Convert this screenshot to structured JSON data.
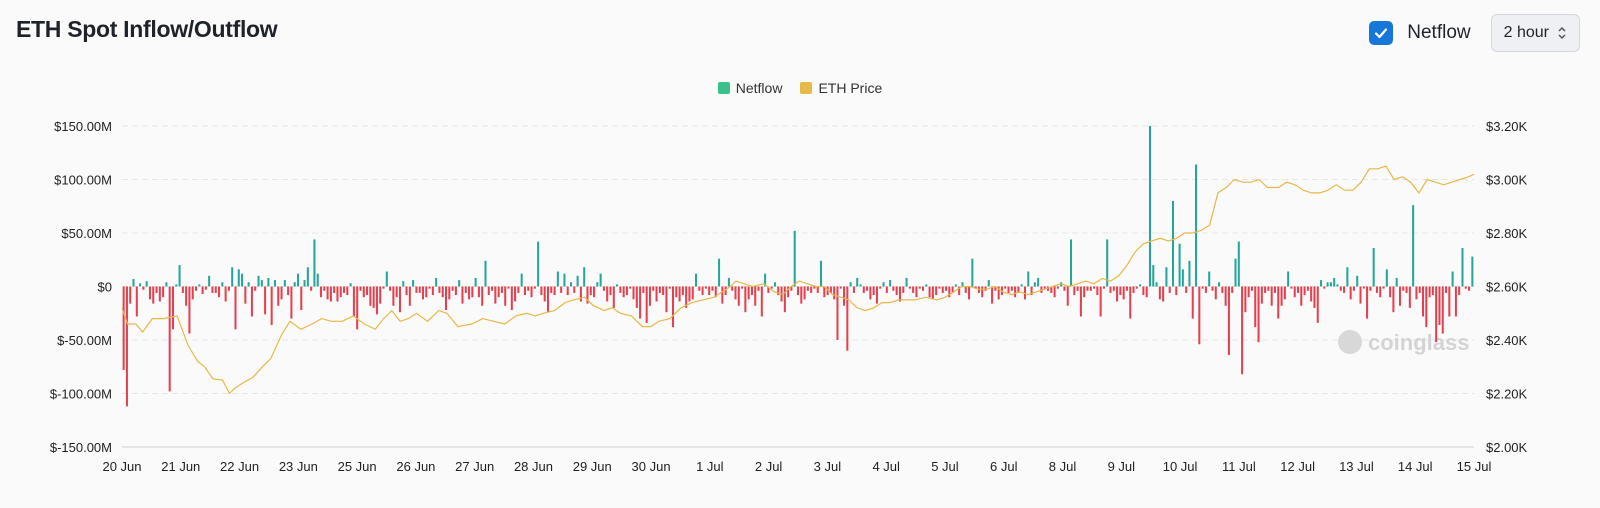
{
  "header": {
    "title": "ETH Spot Inflow/Outflow",
    "checkbox_label": "Netflow",
    "checkbox_checked": true,
    "interval_value": "2 hour"
  },
  "colors": {
    "positive": "#26a69a",
    "negative": "#e5404f",
    "price": "#e8b84a",
    "legend_netflow": "#3ac18a",
    "checkbox": "#1677d9"
  },
  "icons": {
    "checkbox": "check-icon",
    "select": "chevron-updown-icon",
    "watermark": "coinglass-logo-icon"
  },
  "watermark": "coinglass",
  "chart_data": {
    "type": "bar",
    "legend": [
      "Netflow",
      "ETH Price"
    ],
    "left_axis": {
      "ticks": [
        "$150.00M",
        "$100.00M",
        "$50.00M",
        "$0",
        "$-50.00M",
        "$-100.00M",
        "$-150.00M"
      ],
      "min": -150,
      "max": 150
    },
    "right_axis": {
      "ticks": [
        "$3.20K",
        "$3.00K",
        "$2.80K",
        "$2.60K",
        "$2.40K",
        "$2.20K",
        "$2.00K"
      ],
      "min": 2000,
      "max": 3200
    },
    "x_labels": [
      "20 Jun",
      "21 Jun",
      "22 Jun",
      "23 Jun",
      "25 Jun",
      "26 Jun",
      "27 Jun",
      "28 Jun",
      "29 Jun",
      "30 Jun",
      "1 Jul",
      "2 Jul",
      "3 Jul",
      "4 Jul",
      "5 Jul",
      "6 Jul",
      "8 Jul",
      "9 Jul",
      "10 Jul",
      "11 Jul",
      "12 Jul",
      "13 Jul",
      "14 Jul",
      "15 Jul"
    ],
    "grid": true,
    "series": [
      {
        "name": "Netflow",
        "unit": "$M",
        "values": [
          -78,
          -112,
          -16,
          7,
          -28,
          3,
          -3,
          5,
          -12,
          -16,
          -6,
          -14,
          -10,
          4,
          -98,
          -40,
          2,
          20,
          -6,
          -18,
          -44,
          -12,
          -4,
          2,
          -7,
          -3,
          10,
          -6,
          -6,
          -10,
          4,
          -14,
          -4,
          18,
          -40,
          16,
          12,
          -16,
          4,
          -28,
          -4,
          10,
          6,
          -26,
          8,
          -36,
          6,
          -18,
          -12,
          6,
          -8,
          -30,
          4,
          12,
          -22,
          6,
          18,
          -4,
          44,
          12,
          -10,
          -4,
          -12,
          -14,
          -6,
          -14,
          -10,
          -6,
          -8,
          3,
          -28,
          -40,
          -4,
          -10,
          -8,
          -18,
          -20,
          -26,
          -16,
          -2,
          14,
          -4,
          -18,
          -10,
          -24,
          5,
          -8,
          -18,
          6,
          -6,
          -6,
          -12,
          -10,
          -2,
          -8,
          8,
          -6,
          -10,
          -22,
          -12,
          -4,
          -8,
          6,
          -16,
          -6,
          -12,
          -10,
          8,
          -10,
          -18,
          24,
          -8,
          -4,
          -16,
          -10,
          -6,
          -18,
          -2,
          -22,
          -14,
          -6,
          12,
          -8,
          -4,
          -10,
          -2,
          42,
          -8,
          -14,
          -24,
          -6,
          -8,
          14,
          -6,
          12,
          -8,
          4,
          -6,
          10,
          -14,
          18,
          -16,
          -8,
          -10,
          4,
          12,
          -4,
          -14,
          -8,
          -20,
          2,
          -6,
          -10,
          -8,
          -2,
          -12,
          -20,
          -30,
          -6,
          -34,
          -18,
          -4,
          -14,
          -6,
          -8,
          -24,
          -2,
          -38,
          -10,
          -14,
          -8,
          -20,
          -14,
          -12,
          12,
          -4,
          -8,
          -2,
          -8,
          -4,
          -10,
          26,
          -16,
          -8,
          8,
          -4,
          -12,
          -18,
          -2,
          -24,
          -12,
          -8,
          -18,
          -4,
          -28,
          12,
          -6,
          -2,
          4,
          -8,
          -14,
          -24,
          -10,
          -4,
          52,
          -8,
          -16,
          -12,
          -4,
          -6,
          -2,
          -6,
          24,
          -10,
          -8,
          -6,
          -12,
          -50,
          -2,
          -18,
          -60,
          4,
          -6,
          8,
          2,
          -6,
          -4,
          -12,
          -8,
          -16,
          -2,
          4,
          -6,
          6,
          -4,
          -8,
          -14,
          -6,
          8,
          -2,
          -6,
          -10,
          -2,
          -4,
          2,
          -10,
          -12,
          -8,
          -2,
          -6,
          -4,
          -10,
          -6,
          2,
          -8,
          4,
          -6,
          -12,
          26,
          -2,
          -6,
          -10,
          -4,
          6,
          -16,
          -4,
          -12,
          -8,
          -2,
          -6,
          -4,
          -10,
          -6,
          2,
          -12,
          14,
          -8,
          4,
          8,
          -6,
          -2,
          -4,
          -6,
          -10,
          -2,
          4,
          -4,
          -18,
          44,
          -8,
          -4,
          -28,
          -10,
          -4,
          -4,
          -2,
          -8,
          -28,
          -2,
          44,
          -6,
          -4,
          -14,
          -8,
          -12,
          -4,
          -30,
          -6,
          -2,
          2,
          -8,
          -10,
          150,
          20,
          4,
          -12,
          -14,
          18,
          -6,
          80,
          -8,
          40,
          16,
          -6,
          24,
          -30,
          114,
          -54,
          -2,
          -6,
          14,
          -4,
          -12,
          4,
          -6,
          -18,
          -64,
          -6,
          26,
          42,
          -82,
          -24,
          -10,
          -4,
          -38,
          -52,
          -16,
          -6,
          -4,
          -18,
          -6,
          -30,
          -18,
          -12,
          14,
          -2,
          -10,
          -6,
          -18,
          -8,
          -4,
          -14,
          -20,
          -34,
          6,
          -2,
          4,
          4,
          8,
          2,
          -4,
          -6,
          18,
          -12,
          -4,
          10,
          -16,
          -2,
          -30,
          -4,
          36,
          -6,
          -10,
          -2,
          16,
          -10,
          -24,
          8,
          -18,
          -4,
          -6,
          -20,
          76,
          -12,
          -6,
          -28,
          -38,
          -10,
          -8,
          -52,
          -36,
          -44,
          -6,
          -28,
          14,
          -28,
          -8,
          36,
          -2,
          -4,
          28
        ]
      },
      {
        "name": "ETH Price",
        "unit": "USD",
        "anchors": [
          [
            0,
            2520
          ],
          [
            4,
            2460
          ],
          [
            10,
            2460
          ],
          [
            15,
            2430
          ],
          [
            22,
            2480
          ],
          [
            30,
            2480
          ],
          [
            40,
            2490
          ],
          [
            48,
            2380
          ],
          [
            55,
            2320
          ],
          [
            60,
            2300
          ],
          [
            66,
            2255
          ],
          [
            73,
            2250
          ],
          [
            78,
            2200
          ],
          [
            82,
            2220
          ],
          [
            88,
            2240
          ],
          [
            95,
            2260
          ],
          [
            102,
            2300
          ],
          [
            108,
            2330
          ],
          [
            116,
            2420
          ],
          [
            122,
            2470
          ],
          [
            130,
            2440
          ],
          [
            138,
            2460
          ],
          [
            145,
            2480
          ],
          [
            152,
            2470
          ],
          [
            160,
            2470
          ],
          [
            168,
            2490
          ],
          [
            176,
            2460
          ],
          [
            184,
            2440
          ],
          [
            190,
            2480
          ],
          [
            196,
            2510
          ],
          [
            202,
            2470
          ],
          [
            208,
            2480
          ],
          [
            214,
            2500
          ],
          [
            222,
            2470
          ],
          [
            230,
            2510
          ],
          [
            236,
            2500
          ],
          [
            244,
            2450
          ],
          [
            254,
            2460
          ],
          [
            262,
            2480
          ],
          [
            270,
            2470
          ],
          [
            278,
            2460
          ],
          [
            286,
            2490
          ],
          [
            294,
            2500
          ],
          [
            300,
            2490
          ],
          [
            306,
            2500
          ],
          [
            314,
            2510
          ],
          [
            322,
            2540
          ],
          [
            328,
            2550
          ],
          [
            336,
            2560
          ],
          [
            342,
            2530
          ],
          [
            350,
            2510
          ],
          [
            356,
            2520
          ],
          [
            362,
            2500
          ],
          [
            370,
            2490
          ],
          [
            378,
            2450
          ],
          [
            384,
            2450
          ],
          [
            390,
            2470
          ],
          [
            398,
            2480
          ],
          [
            406,
            2520
          ],
          [
            414,
            2540
          ],
          [
            422,
            2550
          ],
          [
            430,
            2560
          ],
          [
            436,
            2580
          ],
          [
            442,
            2600
          ],
          [
            446,
            2620
          ],
          [
            452,
            2610
          ],
          [
            458,
            2600
          ],
          [
            466,
            2610
          ],
          [
            474,
            2580
          ],
          [
            480,
            2570
          ],
          [
            486,
            2600
          ],
          [
            492,
            2620
          ],
          [
            498,
            2610
          ],
          [
            504,
            2600
          ],
          [
            510,
            2600
          ],
          [
            516,
            2570
          ],
          [
            522,
            2560
          ],
          [
            528,
            2550
          ],
          [
            534,
            2520
          ],
          [
            540,
            2510
          ],
          [
            546,
            2520
          ],
          [
            552,
            2540
          ],
          [
            558,
            2540
          ],
          [
            564,
            2550
          ],
          [
            570,
            2550
          ],
          [
            576,
            2550
          ],
          [
            584,
            2560
          ],
          [
            592,
            2550
          ],
          [
            598,
            2560
          ],
          [
            604,
            2580
          ],
          [
            610,
            2600
          ],
          [
            616,
            2600
          ],
          [
            622,
            2590
          ],
          [
            628,
            2590
          ],
          [
            634,
            2600
          ],
          [
            640,
            2580
          ],
          [
            646,
            2570
          ],
          [
            652,
            2580
          ],
          [
            658,
            2570
          ],
          [
            664,
            2580
          ],
          [
            670,
            2590
          ],
          [
            676,
            2600
          ],
          [
            682,
            2610
          ],
          [
            688,
            2600
          ],
          [
            694,
            2610
          ],
          [
            700,
            2620
          ],
          [
            706,
            2610
          ],
          [
            712,
            2630
          ],
          [
            718,
            2620
          ],
          [
            724,
            2640
          ],
          [
            730,
            2680
          ],
          [
            736,
            2730
          ],
          [
            742,
            2760
          ],
          [
            748,
            2770
          ],
          [
            754,
            2780
          ],
          [
            760,
            2770
          ],
          [
            766,
            2780
          ],
          [
            772,
            2800
          ],
          [
            778,
            2800
          ],
          [
            784,
            2810
          ],
          [
            790,
            2830
          ],
          [
            796,
            2950
          ],
          [
            802,
            2970
          ],
          [
            808,
            3000
          ],
          [
            814,
            2990
          ],
          [
            820,
            2990
          ],
          [
            826,
            3000
          ],
          [
            832,
            2970
          ],
          [
            840,
            2970
          ],
          [
            846,
            2990
          ],
          [
            852,
            2980
          ],
          [
            858,
            2960
          ],
          [
            864,
            2950
          ],
          [
            870,
            2950
          ],
          [
            876,
            2960
          ],
          [
            882,
            2980
          ],
          [
            888,
            2960
          ],
          [
            894,
            2960
          ],
          [
            900,
            2990
          ],
          [
            906,
            3040
          ],
          [
            912,
            3040
          ],
          [
            918,
            3050
          ],
          [
            924,
            3000
          ],
          [
            930,
            3010
          ],
          [
            936,
            2990
          ],
          [
            942,
            2950
          ],
          [
            948,
            3000
          ],
          [
            954,
            2990
          ],
          [
            960,
            2980
          ],
          [
            966,
            2990
          ],
          [
            972,
            3000
          ],
          [
            978,
            3010
          ],
          [
            982,
            3020
          ]
        ]
      }
    ]
  }
}
